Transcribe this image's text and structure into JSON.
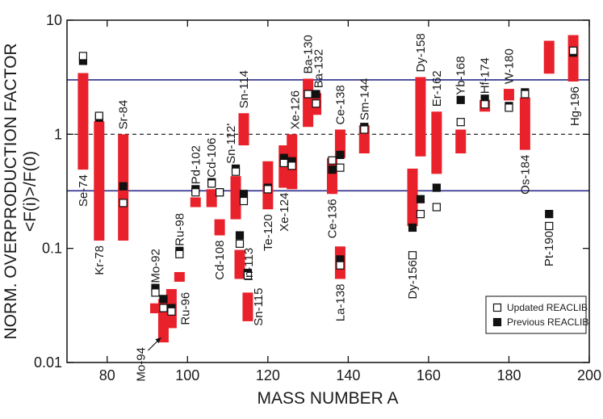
{
  "chart_data": {
    "type": "range-scatter",
    "x_label": "MASS NUMBER A",
    "y_label": [
      "NORM. OVERPRODUCTION FACTOR",
      "<F(i)>/F(0)"
    ],
    "xlim": [
      70,
      200
    ],
    "xticks": [
      80,
      100,
      120,
      140,
      160,
      180,
      200
    ],
    "ylim": [
      0.01,
      10
    ],
    "yticks": [
      0.01,
      0.1,
      1,
      10
    ],
    "log_y": true,
    "labels": [
      "Se-74",
      "Kr-78",
      "Sr-84",
      "Mo-92",
      "Mo-94",
      "Ru-96",
      "Ru-98",
      "Pd-102",
      "Cd-106",
      "Cd-108",
      "Sn-112'",
      "In-113",
      "Sn-114",
      "Sn-115",
      "Te-120",
      "Xe-124",
      "Xe-126",
      "Ba-130",
      "Ba-132",
      "Ce-136",
      "Ce-138",
      "La-138",
      "Sm-144",
      "Dy-156",
      "Dy-158",
      "Er-162",
      "Yb-168",
      "Hf-174",
      "W-180",
      "Os-184",
      "Pt-190",
      "Hg-196"
    ],
    "x": [
      74,
      78,
      84,
      92,
      94,
      96,
      98,
      102,
      106,
      108,
      112,
      113,
      114,
      115,
      120,
      124,
      126,
      130,
      132,
      136,
      138,
      138,
      144,
      156,
      158,
      162,
      168,
      174,
      180,
      184,
      190,
      196
    ],
    "range_low": [
      0.49,
      0.117,
      0.117,
      0.027,
      0.015,
      0.02,
      0.051,
      0.23,
      0.23,
      0.13,
      0.18,
      0.054,
      0.8,
      0.023,
      0.22,
      0.34,
      0.33,
      1.16,
      1.48,
      0.3,
      0.62,
      0.054,
      0.68,
      0.157,
      0.64,
      0.45,
      0.68,
      1.58,
      1.98,
      0.73,
      3.4,
      2.9
    ],
    "range_high": [
      3.44,
      1.3,
      1.0,
      0.033,
      0.036,
      0.044,
      0.062,
      0.28,
      0.33,
      0.18,
      0.43,
      0.097,
      1.53,
      0.041,
      0.58,
      0.8,
      1.0,
      3.07,
      2.3,
      0.62,
      1.1,
      0.104,
      1.2,
      0.5,
      3.17,
      1.58,
      1.1,
      2.0,
      2.5,
      2.1,
      6.6,
      7.4
    ],
    "range_color": "#e8212b",
    "series": [
      {
        "name": "Updated REACLIB",
        "marker": "open",
        "color": "#111111",
        "values": [
          4.85,
          1.45,
          0.25,
          0.041,
          0.03,
          0.028,
          0.089,
          0.31,
          0.37,
          0.31,
          0.47,
          0.11,
          0.26,
          0.058,
          0.33,
          0.56,
          0.53,
          2.25,
          1.86,
          0.59,
          0.51,
          0.071,
          1.1,
          0.087,
          0.2,
          0.23,
          1.28,
          1.83,
          1.71,
          2.25,
          0.157,
          5.4
        ]
      },
      {
        "name": "Previous REACLIB",
        "marker": "filled",
        "color": "#111111",
        "values": [
          4.4,
          1.4,
          0.35,
          0.045,
          0.036,
          0.03,
          0.095,
          0.33,
          0.38,
          0.31,
          0.5,
          0.13,
          0.3,
          0.061,
          0.34,
          0.62,
          0.58,
          2.25,
          2.25,
          0.49,
          0.66,
          0.08,
          1.16,
          0.152,
          0.27,
          0.34,
          2.0,
          2.05,
          1.77,
          2.33,
          0.2,
          5.2
        ]
      }
    ],
    "reference_lines": [
      {
        "value": 3,
        "color": "#2b2b8c",
        "style": "solid"
      },
      {
        "value": 1,
        "color": "#111111",
        "style": "dashed"
      },
      {
        "value": 0.32,
        "color": "#2b2b8c",
        "style": "solid"
      }
    ],
    "legend": "lower right"
  }
}
